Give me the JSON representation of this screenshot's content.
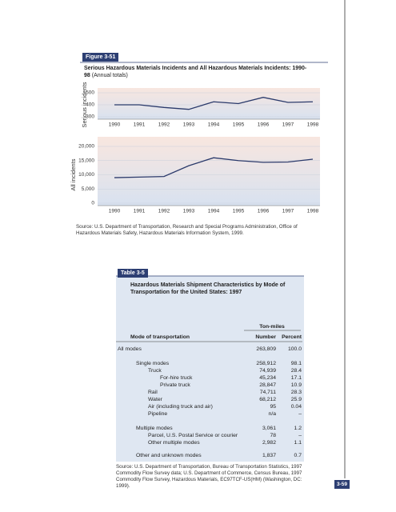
{
  "figure": {
    "label": "Figure 3-51",
    "title": "Serious Hazardous Materials Incidents and All Hazardous Materials Incidents: 1990-98",
    "subtitle": "(Annual totals)",
    "source": "Source: U.S. Department of Transportation, Research and Special Programs Administration, Office of Hazardous Materials Safety, Hazardous Materials Information System, 1999."
  },
  "chart_data": [
    {
      "type": "line",
      "ylabel": "Serious incidents",
      "categories": [
        "1990",
        "1991",
        "1992",
        "1993",
        "1994",
        "1995",
        "1996",
        "1997",
        "1998"
      ],
      "values": [
        400,
        400,
        378,
        362,
        425,
        410,
        462,
        420,
        425
      ],
      "color": "#2b3a6b",
      "ylim": [
        300,
        500
      ],
      "yticks": [
        300,
        400,
        500
      ],
      "grid": true
    },
    {
      "type": "line",
      "ylabel": "All incidents",
      "categories": [
        "1990",
        "1991",
        "1992",
        "1993",
        "1994",
        "1995",
        "1996",
        "1997",
        "1998"
      ],
      "values": [
        9000,
        9200,
        9400,
        13200,
        16000,
        15000,
        14400,
        14500,
        15500
      ],
      "color": "#2b3a6b",
      "ylim": [
        0,
        20000
      ],
      "yticks": [
        0,
        {
          "value": 5000,
          "label": "5,000"
        },
        {
          "value": 10000,
          "label": "10,000"
        },
        {
          "value": 15000,
          "label": "15,000"
        },
        {
          "value": 20000,
          "label": "20,000"
        }
      ],
      "grid": true
    }
  ],
  "table": {
    "label": "Table 3-5",
    "title": "Hazardous Materials Shipment Characteristics by Mode of Transportation for the United States: 1997",
    "group_header": "Ton-miles",
    "columns": [
      "Mode of transportation",
      "Number",
      "Percent"
    ],
    "rows": [
      [
        "All modes",
        "263,809",
        "100.0"
      ],
      [
        "Single modes",
        "258,912",
        "98.1"
      ],
      [
        "Truck",
        "74,939",
        "28.4"
      ],
      [
        "For-hire truck",
        "45,234",
        "17.1"
      ],
      [
        "Private truck",
        "28,847",
        "10.9"
      ],
      [
        "Rail",
        "74,711",
        "28.3"
      ],
      [
        "Water",
        "68,212",
        "25.9"
      ],
      [
        "Air (including truck and air)",
        "95",
        "0.04"
      ],
      [
        "Pipeline",
        "n/a",
        "–"
      ],
      [
        "Multiple modes",
        "3,061",
        "1.2"
      ],
      [
        "Parcel, U.S. Postal Service or courier",
        "78",
        "–"
      ],
      [
        "Other multiple modes",
        "2,982",
        "1.1"
      ],
      [
        "Other and unknown modes",
        "1,837",
        "0.7"
      ]
    ],
    "source": "Source: U.S. Department of Transportation, Bureau of Transportation Statistics, 1997 Commodity Flow Survey data; U.S. Department of Commerce, Census Bureau, 1997 Commodity Flow Survey, Hazardous Materials, EC97TCF-US(HM) (Washington, DC: 1999)."
  },
  "page_number": "3-59"
}
